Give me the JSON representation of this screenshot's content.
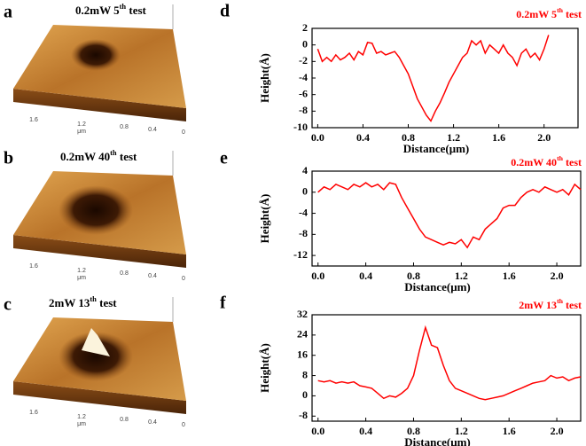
{
  "images": [
    {
      "label": "a",
      "title": [
        "0.2mW 5",
        "th",
        " test"
      ],
      "axis": [
        "1.6",
        "1.2",
        "μm",
        "0.8",
        "0.4",
        "0"
      ]
    },
    {
      "label": "b",
      "title": [
        "0.2mW 40",
        "th",
        " test"
      ],
      "axis": [
        "1.6",
        "1.2",
        "μm",
        "0.8",
        "0.4",
        "0"
      ]
    },
    {
      "label": "c",
      "title": [
        "2mW 13",
        "th",
        " test"
      ],
      "axis": [
        "1.6",
        "1.2",
        "μm",
        "0.8",
        "0.4",
        "0"
      ]
    }
  ],
  "chart_data": [
    {
      "type": "line",
      "label": "d",
      "title": [
        "0.2mW 5",
        "th",
        " test"
      ],
      "xlabel": "Distance(μm)",
      "ylabel": "Height(Å)",
      "color": "#ff0000",
      "x": [
        0,
        0.04,
        0.08,
        0.12,
        0.16,
        0.2,
        0.24,
        0.28,
        0.32,
        0.36,
        0.4,
        0.44,
        0.48,
        0.52,
        0.56,
        0.6,
        0.64,
        0.68,
        0.72,
        0.76,
        0.8,
        0.84,
        0.88,
        0.92,
        0.96,
        1,
        1.04,
        1.08,
        1.12,
        1.16,
        1.2,
        1.24,
        1.28,
        1.32,
        1.36,
        1.4,
        1.44,
        1.48,
        1.52,
        1.56,
        1.6,
        1.64,
        1.68,
        1.72,
        1.76,
        1.8,
        1.84,
        1.88,
        1.92,
        1.96,
        2,
        2.04
      ],
      "values": [
        -0.5,
        -2,
        -1.5,
        -2,
        -1.2,
        -1.8,
        -1.5,
        -1,
        -1.8,
        -0.8,
        -1.2,
        0.3,
        0.2,
        -1,
        -0.8,
        -1.2,
        -1,
        -0.8,
        -1.5,
        -2.5,
        -3.5,
        -5,
        -6.5,
        -7.5,
        -8.5,
        -9.2,
        -8,
        -7,
        -5.8,
        -4.5,
        -3.5,
        -2.5,
        -1.5,
        -1,
        0.5,
        0,
        0.5,
        -1,
        0,
        -0.5,
        -1,
        0,
        -1,
        -1.5,
        -2.5,
        -1,
        -0.5,
        -1.5,
        -1,
        -1.8,
        -0.5,
        1.2
      ],
      "xlim": [
        -0.05,
        2.3
      ],
      "ylim": [
        -10,
        2
      ],
      "xticks": [
        {
          "value": 0,
          "label": "0.0"
        },
        0.4,
        0.8,
        1.2,
        1.6,
        {
          "value": 2,
          "label": "2.0"
        }
      ],
      "yticks": [
        -10,
        -8,
        -6,
        -4,
        -2,
        0,
        2
      ]
    },
    {
      "type": "line",
      "label": "e",
      "title": [
        "0.2mW 40",
        "th",
        " test"
      ],
      "xlabel": "Distance(μm)",
      "ylabel": "Height(Å)",
      "color": "#ff0000",
      "x": [
        0,
        0.05,
        0.1,
        0.15,
        0.2,
        0.25,
        0.3,
        0.35,
        0.4,
        0.45,
        0.5,
        0.55,
        0.6,
        0.65,
        0.7,
        0.75,
        0.8,
        0.85,
        0.9,
        0.95,
        1,
        1.05,
        1.1,
        1.15,
        1.2,
        1.25,
        1.3,
        1.35,
        1.4,
        1.45,
        1.5,
        1.55,
        1.6,
        1.65,
        1.7,
        1.75,
        1.8,
        1.85,
        1.9,
        1.95,
        2,
        2.05,
        2.1,
        2.15,
        2.2
      ],
      "values": [
        0,
        1,
        0.5,
        1.5,
        1,
        0.5,
        1.5,
        1,
        1.8,
        1,
        1.5,
        0.5,
        1.8,
        1.5,
        -1,
        -3,
        -5,
        -7,
        -8.5,
        -9,
        -9.5,
        -10,
        -9.5,
        -9.8,
        -9,
        -10.5,
        -8.5,
        -9,
        -7,
        -6,
        -5,
        -3,
        -2.5,
        -2.5,
        -1,
        0,
        0.5,
        0,
        1,
        0.5,
        0,
        0.5,
        -0.5,
        1.5,
        0.5
      ],
      "xlim": [
        -0.05,
        2.2
      ],
      "ylim": [
        -14,
        4
      ],
      "xticks": [
        {
          "value": 0,
          "label": "0.0"
        },
        0.4,
        0.8,
        1.2,
        1.6,
        {
          "value": 2,
          "label": "2.0"
        }
      ],
      "yticks": [
        -12,
        -8,
        -4,
        0,
        4
      ]
    },
    {
      "type": "line",
      "label": "f",
      "title": [
        "2mW 13",
        "th",
        " test"
      ],
      "xlabel": "Distance(μm)",
      "ylabel": "Height(Å)",
      "color": "#ff0000",
      "x": [
        0,
        0.05,
        0.1,
        0.15,
        0.2,
        0.25,
        0.3,
        0.35,
        0.4,
        0.45,
        0.5,
        0.55,
        0.6,
        0.65,
        0.7,
        0.75,
        0.8,
        0.85,
        0.9,
        0.95,
        1,
        1.05,
        1.1,
        1.15,
        1.2,
        1.25,
        1.3,
        1.35,
        1.4,
        1.45,
        1.5,
        1.55,
        1.6,
        1.65,
        1.7,
        1.75,
        1.8,
        1.85,
        1.9,
        1.95,
        2,
        2.05,
        2.1,
        2.15,
        2.2
      ],
      "values": [
        6,
        5.5,
        6,
        5,
        5.5,
        5,
        5.5,
        4,
        3.5,
        3,
        1,
        -1,
        0,
        -0.5,
        1,
        3,
        8,
        18,
        27,
        20,
        19,
        12,
        6,
        3,
        2,
        1,
        0,
        -1,
        -1.5,
        -1,
        -0.5,
        0,
        1,
        2,
        3,
        4,
        5,
        5.5,
        6,
        8,
        7,
        7.5,
        6,
        7,
        7.5
      ],
      "xlim": [
        -0.05,
        2.2
      ],
      "ylim": [
        -10,
        32
      ],
      "xticks": [
        {
          "value": 0,
          "label": "0.0"
        },
        0.4,
        0.8,
        1.2,
        1.6,
        {
          "value": 2,
          "label": "2.0"
        }
      ],
      "yticks": [
        -8,
        0,
        8,
        16,
        24,
        32
      ]
    }
  ]
}
